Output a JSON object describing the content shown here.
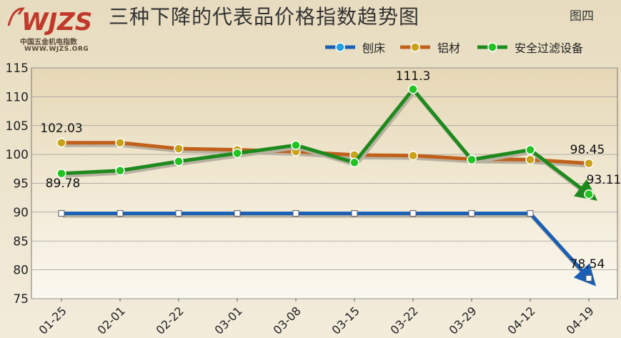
{
  "header": {
    "logo_text": "WJZS",
    "logo_subtitle": "中国五金机电指数",
    "logo_url": "WWW.WJZS.ORG",
    "title": "三种下降的代表品价格指数趋势图",
    "figure_label": "图四"
  },
  "chart_data": {
    "type": "line",
    "title": "三种下降的代表品价格指数趋势图",
    "xlabel": "",
    "ylabel": "",
    "categories": [
      "01-25",
      "02-01",
      "02-22",
      "03-01",
      "03-08",
      "03-15",
      "03-22",
      "03-29",
      "04-12",
      "04-19"
    ],
    "ylim": [
      75,
      115
    ],
    "yticks": [
      75,
      80,
      85,
      90,
      95,
      100,
      105,
      110,
      115
    ],
    "grid": true,
    "legend_position": "top-right",
    "series": [
      {
        "name": "刨床",
        "color": "#1a5fb4",
        "marker_color": "#ffffff",
        "values": [
          89.78,
          89.78,
          89.78,
          89.78,
          89.78,
          89.78,
          89.78,
          89.78,
          89.78,
          78.54
        ],
        "labels": {
          "0": "89.78",
          "9": "78.54"
        }
      },
      {
        "name": "铝材",
        "color": "#c0601a",
        "marker_color": "#c9a21c",
        "values": [
          102.03,
          102.03,
          101.0,
          100.8,
          100.5,
          99.9,
          99.8,
          99.2,
          99.1,
          98.45
        ],
        "labels": {
          "0": "102.03",
          "9": "98.45"
        }
      },
      {
        "name": "安全过滤设备",
        "color": "#1e8a1e",
        "marker_color": "#22c322",
        "values": [
          96.7,
          97.2,
          98.8,
          100.2,
          101.6,
          98.6,
          111.3,
          99.1,
          100.8,
          93.11
        ],
        "labels": {
          "6": "111.3",
          "9": "93.11"
        }
      }
    ]
  }
}
